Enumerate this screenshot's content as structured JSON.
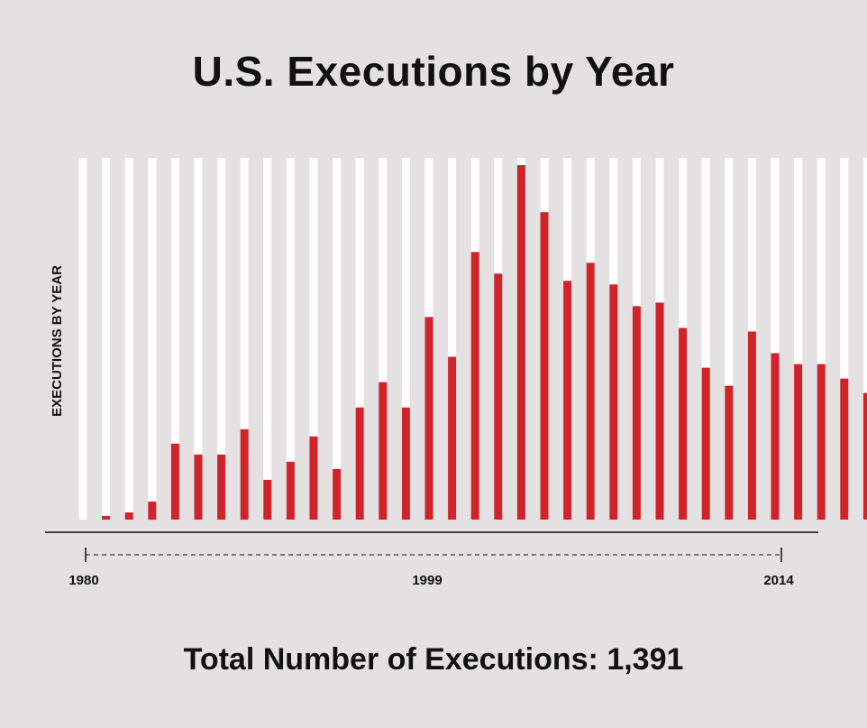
{
  "title": "U.S. Executions by Year",
  "footer": {
    "total_text": "Total Number of Executions: 1,391"
  },
  "colors": {
    "background": "#e3e1e2",
    "bar_fill": "#d1232a",
    "bar_track": "#ffffff",
    "text": "#111111"
  },
  "chart_data": {
    "type": "bar",
    "title": "U.S. Executions by Year",
    "ylabel": "EXECUTIONS BY YEAR",
    "xlabel": "",
    "x_tick_labels": [
      "1980",
      "1999",
      "2014"
    ],
    "ylim": [
      0,
      100
    ],
    "categories": [
      1980,
      1981,
      1982,
      1983,
      1984,
      1985,
      1986,
      1987,
      1988,
      1989,
      1990,
      1991,
      1992,
      1993,
      1994,
      1995,
      1996,
      1997,
      1998,
      1999,
      2000,
      2001,
      2002,
      2003,
      2004,
      2005,
      2006,
      2007,
      2008,
      2009,
      2010,
      2011,
      2012,
      2013,
      2014
    ],
    "values": [
      0,
      1,
      2,
      5,
      21,
      18,
      18,
      25,
      11,
      16,
      23,
      14,
      31,
      38,
      31,
      56,
      45,
      74,
      68,
      98,
      85,
      66,
      71,
      65,
      59,
      60,
      53,
      42,
      37,
      52,
      46,
      43,
      43,
      39,
      35
    ],
    "grid": false
  }
}
